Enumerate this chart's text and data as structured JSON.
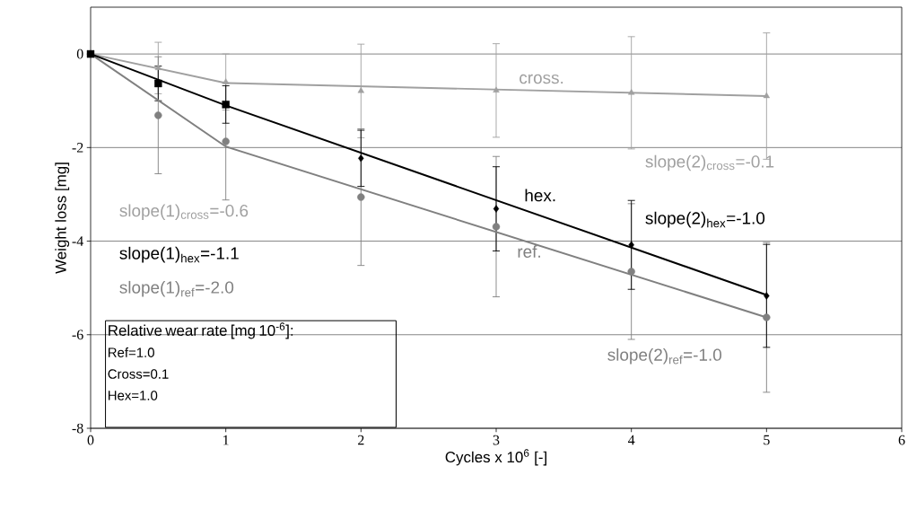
{
  "chart_data": {
    "type": "scatter",
    "xlabel": "Cycles x 10$^{6}$ [-]",
    "ylabel": "Weight loss [mg]",
    "xlim": [
      0,
      6
    ],
    "ylim": [
      -8,
      1
    ],
    "xticks": [
      0,
      1,
      2,
      3,
      4,
      5,
      6
    ],
    "yticks": [
      -8,
      -6,
      -4,
      -2,
      0
    ],
    "grid": "y",
    "series": [
      {
        "color": "#a0a0a0",
        "marker": "triangle",
        "x": [
          0.5,
          1,
          2,
          3,
          4,
          5
        ],
        "values": [
          -0.3,
          -0.6,
          -0.79,
          -0.78,
          -0.83,
          -0.9
        ],
        "errors": [
          0.55,
          0.6,
          1.0,
          1.0,
          1.2,
          1.35
        ]
      },
      {
        "color": "#808080",
        "marker": "circle",
        "x": [
          0.5,
          1,
          2,
          3,
          4,
          5
        ],
        "values": [
          -1.31,
          -1.87,
          -3.06,
          -3.69,
          -4.65,
          -5.63
        ],
        "errors": [
          1.25,
          1.25,
          1.46,
          1.5,
          1.45,
          1.6
        ]
      },
      {
        "color": "#000000",
        "marker": "square",
        "x": [
          0,
          0.5,
          1
        ],
        "values": [
          0,
          -0.63,
          -1.08
        ],
        "errors": [
          null,
          0.37,
          0.4
        ]
      },
      {
        "color": "#000000",
        "marker": "diamond",
        "x": [
          2,
          3,
          4,
          5
        ],
        "values": [
          -2.23,
          -3.31,
          -4.08,
          -5.17
        ],
        "errors": [
          0.6,
          0.9,
          0.95,
          1.1
        ]
      },
      {
        "type": "line",
        "name": "cross.",
        "color": "#a0a0a0",
        "marker": "none",
        "x": [
          0,
          1,
          5
        ],
        "values": [
          0,
          -0.62,
          -0.9
        ]
      },
      {
        "type": "line",
        "name": "ref.",
        "color": "#808080",
        "marker": "none",
        "x": [
          0,
          1,
          5
        ],
        "values": [
          0,
          -1.98,
          -5.63
        ]
      },
      {
        "type": "line",
        "name": "hex.",
        "color": "#000000",
        "marker": "none",
        "x": [
          0,
          1,
          5
        ],
        "values": [
          0,
          -1.1,
          -5.15
        ]
      }
    ],
    "annotations": [
      "slope(1)$_{cross}$=-0.6",
      "slope(1)$_{hex}$=-1.1",
      "slope(1)$_{ref}$=-2.0",
      "slope(2)$_{cross}$=-0.1",
      "slope(2)$_{hex}$=-1.0",
      "slope(2)$_{ref}$=-1.0",
      "Relative wear rate [mg 10$^{-6}$]:",
      "Ref=1.0",
      "Cross=0.1",
      "Hex=1.0"
    ]
  }
}
